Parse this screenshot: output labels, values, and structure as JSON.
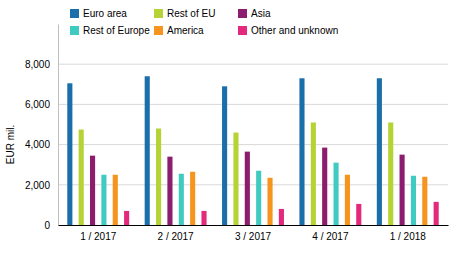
{
  "chart_data": {
    "type": "bar",
    "y_label": "EUR mil.",
    "categories": [
      "1 / 2017",
      "2 / 2017",
      "3 / 2017",
      "4 / 2017",
      "1 / 2018"
    ],
    "series": [
      {
        "name": "Euro area",
        "color": "#1a6faa",
        "values": [
          7050,
          7400,
          6900,
          7300,
          7300
        ]
      },
      {
        "name": "Rest of EU",
        "color": "#b5d334",
        "values": [
          4750,
          4800,
          4600,
          5100,
          5100
        ]
      },
      {
        "name": "Asia",
        "color": "#8c1c6e",
        "values": [
          3450,
          3400,
          3650,
          3850,
          3500
        ]
      },
      {
        "name": "Rest of Europe",
        "color": "#3fcbc1",
        "values": [
          2500,
          2550,
          2700,
          3100,
          2450
        ]
      },
      {
        "name": "America",
        "color": "#f7941e",
        "values": [
          2500,
          2650,
          2350,
          2500,
          2400
        ]
      },
      {
        "name": "Other and unknown",
        "color": "#e2297c",
        "values": [
          700,
          700,
          800,
          1050,
          1150
        ]
      }
    ],
    "ylim": [
      0,
      10000
    ],
    "yticks": [
      0,
      {
        "value": 2000,
        "label": "2,000"
      },
      {
        "value": 4000,
        "label": "4,000"
      },
      {
        "value": 6000,
        "label": "6,000"
      },
      {
        "value": 8000,
        "label": "8,000"
      }
    ],
    "grid": true,
    "legend": "top-left"
  }
}
